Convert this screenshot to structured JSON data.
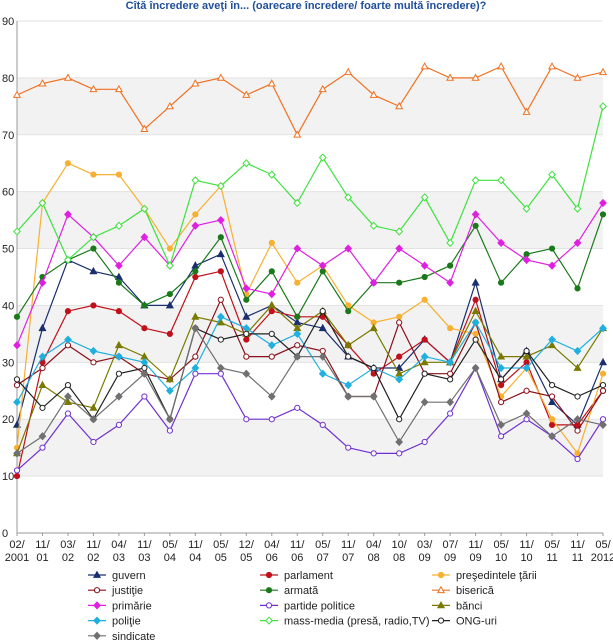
{
  "chart_data": {
    "type": "line",
    "title": "Cîtă încredere aveţi în... (oarecare încredere/ foarte multă încredere)?",
    "xlabel": "",
    "ylabel": "",
    "ylim": [
      0,
      90
    ],
    "yticks": [
      0,
      10,
      20,
      30,
      40,
      50,
      60,
      70,
      80,
      90
    ],
    "grid": "horizontal bands",
    "legend_position": "bottom",
    "categories": [
      [
        "02/",
        "2001"
      ],
      [
        "11/",
        "01"
      ],
      [
        "03/",
        "02"
      ],
      [
        "11/",
        "02"
      ],
      [
        "04/",
        "03"
      ],
      [
        "11/",
        "03"
      ],
      [
        "05/",
        "04"
      ],
      [
        "11/",
        "04"
      ],
      [
        "05/",
        "05"
      ],
      [
        "12/",
        "05"
      ],
      [
        "04/",
        "06"
      ],
      [
        "11/",
        "06"
      ],
      [
        "05/",
        "07"
      ],
      [
        "11/",
        "07"
      ],
      [
        "04/",
        "08"
      ],
      [
        "10/",
        "08"
      ],
      [
        "03/",
        "09"
      ],
      [
        "07/",
        "09"
      ],
      [
        "11/",
        "09"
      ],
      [
        "05/",
        "10"
      ],
      [
        "11/",
        "10"
      ],
      [
        "05/",
        "11"
      ],
      [
        "11/",
        "11"
      ],
      [
        "05/",
        "2012"
      ]
    ],
    "series": [
      {
        "name": "guvern",
        "color": "#1a2f6e",
        "marker": "triangle",
        "values": [
          19,
          36,
          48,
          46,
          45,
          40,
          40,
          47,
          49,
          38,
          40,
          37,
          36,
          31,
          29,
          29,
          34,
          30,
          44,
          27,
          32,
          23,
          19,
          30
        ]
      },
      {
        "name": "parlament",
        "color": "#c0101a",
        "marker": "circle",
        "values": [
          10,
          30,
          39,
          40,
          39,
          36,
          35,
          45,
          46,
          34,
          39,
          38,
          38,
          33,
          28,
          31,
          34,
          30,
          41,
          26,
          30,
          19,
          19,
          25
        ]
      },
      {
        "name": "preşedintele ţării",
        "color": "#f7b030",
        "marker": "circle",
        "values": [
          15,
          58,
          65,
          63,
          63,
          57,
          50,
          56,
          61,
          42,
          51,
          44,
          47,
          40,
          37,
          38,
          41,
          36,
          35,
          24,
          29,
          20,
          14,
          28
        ]
      },
      {
        "name": "justiţie",
        "color": "#8a1018",
        "marker": "circle-open",
        "values": [
          26,
          29,
          33,
          30,
          31,
          28,
          27,
          31,
          41,
          31,
          31,
          33,
          32,
          24,
          24,
          37,
          28,
          28,
          37,
          23,
          25,
          24,
          18,
          25
        ]
      },
      {
        "name": "armată",
        "color": "#1a7a1a",
        "marker": "circle",
        "values": [
          38,
          45,
          48,
          50,
          44,
          40,
          42,
          46,
          52,
          41,
          46,
          38,
          46,
          39,
          44,
          44,
          45,
          47,
          54,
          44,
          49,
          50,
          43,
          56
        ]
      },
      {
        "name": "biserică",
        "color": "#f07020",
        "marker": "triangle-open",
        "values": [
          77,
          79,
          80,
          78,
          78,
          71,
          75,
          79,
          80,
          77,
          79,
          70,
          78,
          81,
          77,
          75,
          82,
          80,
          80,
          82,
          74,
          82,
          80,
          81
        ]
      },
      {
        "name": "primărie",
        "color": "#e020e0",
        "marker": "diamond",
        "values": [
          33,
          44,
          56,
          52,
          47,
          52,
          47,
          54,
          55,
          43,
          42,
          50,
          47,
          50,
          44,
          50,
          47,
          44,
          56,
          51,
          48,
          47,
          51,
          58
        ]
      },
      {
        "name": "partide politice",
        "color": "#7030d0",
        "marker": "circle-open",
        "values": [
          11,
          15,
          21,
          16,
          19,
          24,
          18,
          28,
          28,
          20,
          20,
          22,
          19,
          15,
          14,
          14,
          16,
          21,
          29,
          17,
          20,
          17,
          13,
          20
        ]
      },
      {
        "name": "bănci",
        "color": "#7a7a00",
        "marker": "triangle",
        "values": [
          14,
          26,
          23,
          22,
          33,
          31,
          27,
          38,
          37,
          35,
          40,
          36,
          39,
          33,
          36,
          28,
          30,
          30,
          39,
          31,
          31,
          33,
          29,
          36
        ]
      },
      {
        "name": "poliţie",
        "color": "#20b0e0",
        "marker": "diamond",
        "values": [
          23,
          31,
          34,
          32,
          31,
          30,
          25,
          29,
          38,
          36,
          33,
          35,
          28,
          26,
          29,
          27,
          31,
          30,
          37,
          29,
          29,
          34,
          32,
          36
        ]
      },
      {
        "name": "mass-media (presă, radio,TV)",
        "color": "#40e040",
        "marker": "diamond-open",
        "values": [
          53,
          58,
          48,
          52,
          54,
          57,
          47,
          62,
          61,
          65,
          63,
          58,
          66,
          59,
          54,
          53,
          59,
          51,
          62,
          62,
          57,
          63,
          57,
          75
        ]
      },
      {
        "name": "ONG-uri",
        "color": "#222222",
        "marker": "circle-open",
        "values": [
          27,
          22,
          26,
          20,
          28,
          29,
          20,
          36,
          34,
          35,
          35,
          31,
          39,
          31,
          29,
          20,
          28,
          27,
          34,
          27,
          32,
          26,
          24,
          26
        ]
      },
      {
        "name": "sindicate",
        "color": "#707070",
        "marker": "diamond",
        "values": [
          14,
          17,
          24,
          20,
          24,
          28,
          20,
          36,
          29,
          28,
          24,
          31,
          31,
          24,
          24,
          16,
          23,
          23,
          29,
          19,
          21,
          17,
          20,
          19
        ]
      }
    ]
  }
}
